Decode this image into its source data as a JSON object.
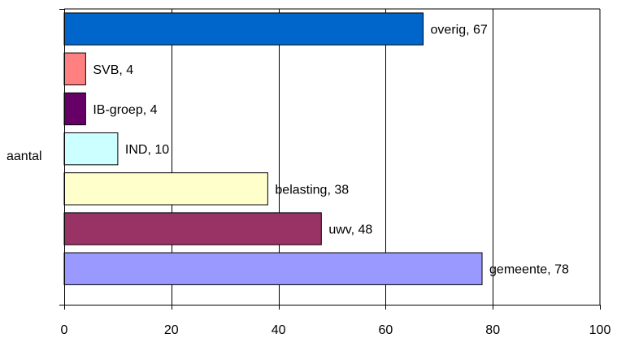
{
  "chart_data": {
    "type": "bar",
    "orientation": "horizontal",
    "stacked": false,
    "ylabel": "aantal",
    "categories": [
      "gemeente",
      "uwv",
      "belasting",
      "IND",
      "IB-groep",
      "SVB",
      "overig"
    ],
    "series": [
      {
        "name": "gemeente",
        "value": 78,
        "label": "gemeente, 78",
        "color": "#9999ff",
        "border": "#000000"
      },
      {
        "name": "uwv",
        "value": 48,
        "label": "uwv, 48",
        "color": "#993366",
        "border": "#000000"
      },
      {
        "name": "belasting",
        "value": 38,
        "label": "belasting, 38",
        "color": "#ffffcc",
        "border": "#000000"
      },
      {
        "name": "IND",
        "value": 10,
        "label": "IND, 10",
        "color": "#ccffff",
        "border": "#000000"
      },
      {
        "name": "IB-groep",
        "value": 4,
        "label": "IB-groep, 4",
        "color": "#660066",
        "border": "#000000"
      },
      {
        "name": "SVB",
        "value": 4,
        "label": "SVB, 4",
        "color": "#ff8080",
        "border": "#000000"
      },
      {
        "name": "overig",
        "value": 67,
        "label": "overig, 67",
        "color": "#0066cc",
        "border": "#000000"
      }
    ],
    "xlim": [
      0,
      100
    ],
    "xticks": [
      "0",
      "20",
      "40",
      "60",
      "80",
      "100"
    ],
    "grid": "vertical",
    "legend": "none"
  }
}
